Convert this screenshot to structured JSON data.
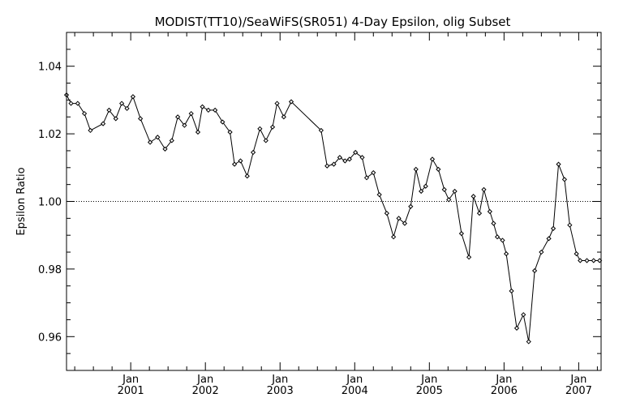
{
  "chart_data": {
    "type": "line",
    "title": "MODIST(TT10)/SeaWiFS(SR051) 4-Day Epsilon, olig Subset",
    "ylabel": "Epsilon Ratio",
    "xlabel": "",
    "xlim": [
      2000.14,
      2007.3
    ],
    "ylim": [
      0.95,
      1.05
    ],
    "yticks": [
      "0.96",
      "0.98",
      "1.00",
      "1.02",
      "1.04"
    ],
    "yminor_step": 0.005,
    "xticks": [
      {
        "top": "Jan",
        "bottom": "2001",
        "x": 2001
      },
      {
        "top": "Jan",
        "bottom": "2002",
        "x": 2002
      },
      {
        "top": "Jan",
        "bottom": "2003",
        "x": 2003
      },
      {
        "top": "Jan",
        "bottom": "2004",
        "x": 2004
      },
      {
        "top": "Jan",
        "bottom": "2005",
        "x": 2005
      },
      {
        "top": "Jan",
        "bottom": "2006",
        "x": 2006
      },
      {
        "top": "Jan",
        "bottom": "2007",
        "x": 2007
      }
    ],
    "reference_line": 1.0,
    "grid": false,
    "series": [
      {
        "x": [
          2000.14,
          2000.2,
          2000.29,
          2000.38,
          2000.46,
          2000.63,
          2000.71,
          2000.8,
          2000.88,
          2000.95,
          2001.03,
          2001.13,
          2001.26,
          2001.36,
          2001.46,
          2001.55,
          2001.63,
          2001.72,
          2001.81,
          2001.9,
          2001.96,
          2002.04,
          2002.13,
          2002.23,
          2002.33,
          2002.39,
          2002.47,
          2002.56,
          2002.64,
          2002.73,
          2002.81,
          2002.9,
          2002.96,
          2003.05,
          2003.15,
          2003.55,
          2003.63,
          2003.72,
          2003.8,
          2003.87,
          2003.93,
          2004.01,
          2004.1,
          2004.16,
          2004.25,
          2004.33,
          2004.43,
          2004.52,
          2004.59,
          2004.67,
          2004.75,
          2004.82,
          2004.89,
          2004.95,
          2005.04,
          2005.12,
          2005.2,
          2005.26,
          2005.34,
          2005.43,
          2005.53,
          2005.59,
          2005.67,
          2005.73,
          2005.81,
          2005.86,
          2005.91,
          2005.98,
          2006.03,
          2006.1,
          2006.17,
          2006.26,
          2006.33,
          2006.41,
          2006.5,
          2006.6,
          2006.66,
          2006.73,
          2006.81,
          2006.88,
          2006.97,
          2007.02,
          2007.11,
          2007.2,
          2007.28
        ],
        "values": [
          1.0315,
          1.029,
          1.029,
          1.026,
          1.021,
          1.023,
          1.027,
          1.0245,
          1.029,
          1.0275,
          1.031,
          1.0245,
          1.0175,
          1.019,
          1.0155,
          1.018,
          1.025,
          1.0225,
          1.026,
          1.0205,
          1.028,
          1.027,
          1.027,
          1.0235,
          1.0205,
          1.011,
          1.012,
          1.0075,
          1.0145,
          1.0215,
          1.018,
          1.022,
          1.029,
          1.025,
          1.0295,
          1.021,
          1.0105,
          1.011,
          1.013,
          1.012,
          1.0125,
          1.0145,
          1.013,
          1.007,
          1.0085,
          1.002,
          0.9965,
          0.9895,
          0.995,
          0.9935,
          0.9985,
          1.0095,
          1.003,
          1.0045,
          1.0125,
          1.0095,
          1.0035,
          1.0005,
          1.003,
          0.9905,
          0.9835,
          1.0015,
          0.9965,
          1.0035,
          0.997,
          0.9935,
          0.9895,
          0.9885,
          0.9845,
          0.9735,
          0.9625,
          0.9665,
          0.9585,
          0.9795,
          0.985,
          0.989,
          0.992,
          1.011,
          1.0065,
          0.993,
          0.9845,
          0.9825,
          0.9825,
          0.9825,
          0.9825
        ]
      }
    ]
  }
}
